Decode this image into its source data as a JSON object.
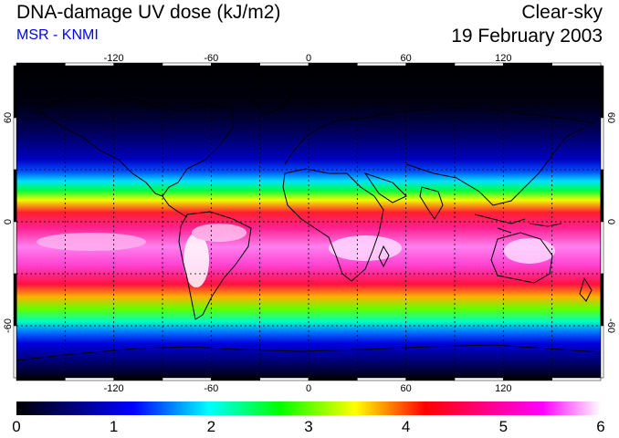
{
  "header": {
    "title": "DNA-damage UV dose (kJ/m2)",
    "subtitle": "MSR - KNMI",
    "condition": "Clear-sky",
    "date": "19 February 2003"
  },
  "map": {
    "lon_range": [
      -180,
      180
    ],
    "lat_range": [
      -90,
      90
    ],
    "lon_ticks": [
      -120,
      -60,
      0,
      60,
      120
    ],
    "lat_ticks": [
      -60,
      0,
      60
    ],
    "grid": true,
    "grid_lon_step": 30,
    "grid_lat_step": 30
  },
  "colorbar": {
    "min": 0,
    "max": 6,
    "tick_labels": [
      "0",
      "1",
      "2",
      "3",
      "4",
      "5",
      "6"
    ],
    "colors": [
      "#000000",
      "#000080",
      "#0000ff",
      "#00ffff",
      "#00ff00",
      "#ffff00",
      "#ff0000",
      "#ff0080",
      "#ff00ff",
      "#ffffff"
    ]
  },
  "colors": {
    "title": "#000000",
    "subtitle": "#0000ff",
    "coastline": "#000000"
  }
}
